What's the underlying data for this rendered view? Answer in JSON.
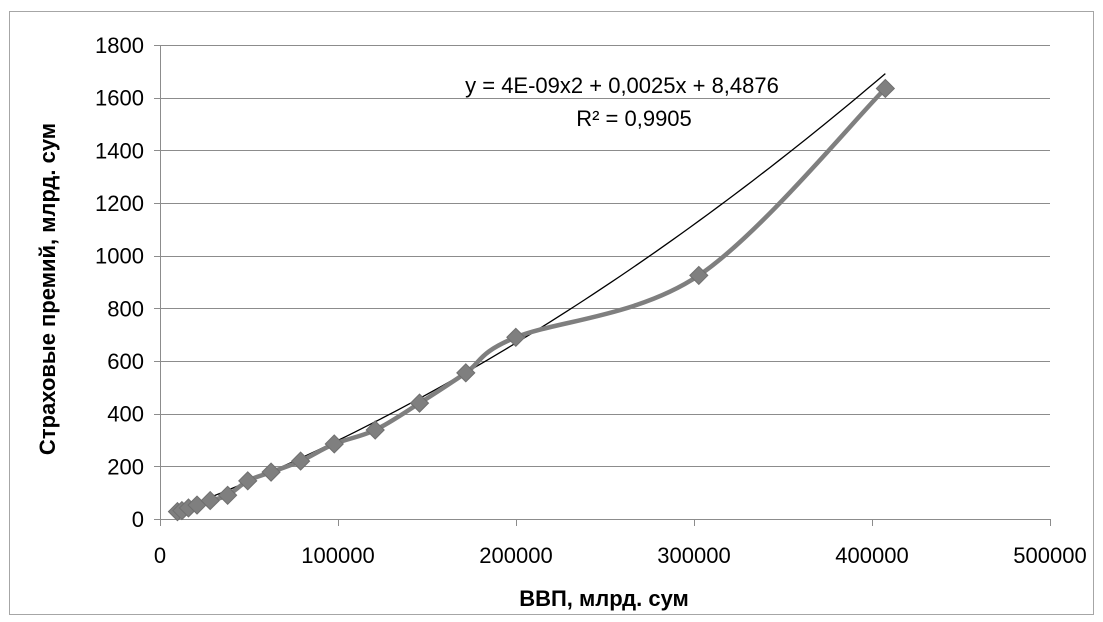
{
  "chart_data": {
    "type": "scatter",
    "title": "",
    "xlabel": "ВВП, млрд. сум",
    "ylabel": "Страховые премий, млрд. сум",
    "xlim": [
      0,
      500000
    ],
    "ylim": [
      0,
      1800
    ],
    "x_ticks": [
      0,
      100000,
      200000,
      300000,
      400000,
      500000
    ],
    "y_ticks": [
      0,
      200,
      400,
      600,
      800,
      1000,
      1200,
      1400,
      1600,
      1800
    ],
    "x_tick_labels": [
      "0",
      "100000",
      "200000",
      "300000",
      "400000",
      "500000"
    ],
    "y_tick_labels": [
      "0",
      "200",
      "400",
      "600",
      "800",
      "1000",
      "1200",
      "1400",
      "1600",
      "1800"
    ],
    "grid": {
      "horizontal": true,
      "vertical": false
    },
    "series": [
      {
        "x": [
          9800,
          12300,
          16000,
          20800,
          28200,
          38000,
          49300,
          62400,
          79000,
          97900,
          120900,
          145800,
          171800,
          199900,
          302700,
          407500
        ],
        "y": [
          28,
          32,
          42,
          53,
          70,
          90,
          145,
          178,
          220,
          285,
          338,
          440,
          555,
          690,
          925,
          1635
        ],
        "color": "#7f7f7f",
        "marker": "diamond",
        "line": "smooth"
      }
    ],
    "trendline": {
      "type": "polynomial",
      "order": 2,
      "coefficients": [
        4e-09,
        0.0025,
        8.4876
      ],
      "x_range": [
        9800,
        407500
      ],
      "color": "#000000",
      "equation_label": "y = 4E-09x2 + 0,0025x + 8,4876",
      "r2_label": "R² = 0,9905"
    }
  }
}
